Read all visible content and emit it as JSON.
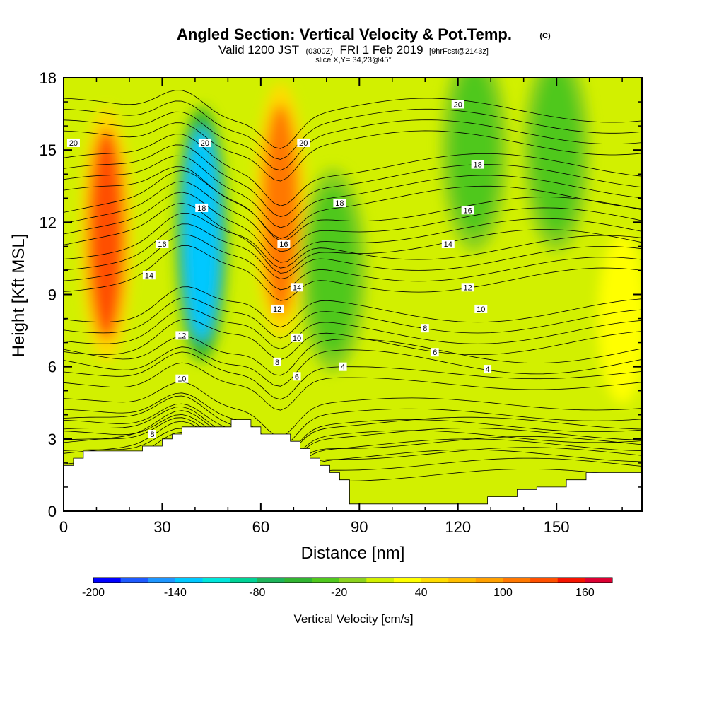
{
  "title": {
    "main": "Angled Section: Vertical Velocity & Pot.Temp.",
    "copyright": "(C)",
    "valid_prefix": "Valid 1200 JST",
    "valid_utc": "(0300Z)",
    "valid_date": "FRI 1 Feb 2019",
    "forecast": "[9hrFcst@2143z]",
    "slice": "slice X,Y= 34,23@45°"
  },
  "chart_data": {
    "type": "heatmap",
    "title": "Angled Section: Vertical Velocity & Pot.Temp.",
    "xlabel": "Distance [nm]",
    "ylabel": "Height [Kft MSL]",
    "xlim": [
      0,
      176
    ],
    "ylim": [
      0,
      18
    ],
    "x_ticks": [
      0,
      30,
      60,
      90,
      120,
      150
    ],
    "y_ticks": [
      0,
      3,
      6,
      9,
      12,
      15,
      18
    ],
    "colorbar": {
      "label": "Vertical Velocity [cm/s]",
      "min": -200,
      "max": 180,
      "step": 20,
      "tick_values": [
        -200,
        -140,
        -80,
        -20,
        40,
        100,
        160
      ],
      "tick_labels": [
        "-200",
        "-140",
        "-80",
        "-20",
        "40",
        "100",
        "160"
      ],
      "colors": [
        "#0000ff",
        "#1e5aff",
        "#1e96ff",
        "#00c8ff",
        "#00e6dc",
        "#00d296",
        "#1eb45a",
        "#32b432",
        "#50c81e",
        "#8cd21e",
        "#d2f000",
        "#ffff00",
        "#ffdc00",
        "#ffbe00",
        "#ffa000",
        "#ff7800",
        "#ff5000",
        "#f51400",
        "#dc0032",
        "#b4005a",
        "#8c0078",
        "#5a0096"
      ]
    },
    "velocity_field": [
      {
        "x": 13,
        "y": 11.5,
        "value": 130
      },
      {
        "x": 42,
        "y": 11.5,
        "value": -130
      },
      {
        "x": 66,
        "y": 12.5,
        "value": 110
      },
      {
        "x": 82,
        "y": 10,
        "value": -40
      },
      {
        "x": 95,
        "y": 2.5,
        "value": 10
      },
      {
        "x": 125,
        "y": 15,
        "value": -40
      },
      {
        "x": 150,
        "y": 15,
        "value": -40
      },
      {
        "x": 170,
        "y": 8,
        "value": 20
      }
    ],
    "potential_temperature_contours": {
      "levels": [
        4,
        6,
        8,
        10,
        12,
        14,
        16,
        18,
        20
      ],
      "labels": [
        {
          "x": 3,
          "y": 15.3,
          "text": "20"
        },
        {
          "x": 43,
          "y": 15.3,
          "text": "20"
        },
        {
          "x": 73,
          "y": 15.3,
          "text": "20"
        },
        {
          "x": 120,
          "y": 16.9,
          "text": "20"
        },
        {
          "x": 42,
          "y": 12.6,
          "text": "18"
        },
        {
          "x": 84,
          "y": 12.8,
          "text": "18"
        },
        {
          "x": 126,
          "y": 14.4,
          "text": "18"
        },
        {
          "x": 30,
          "y": 11.1,
          "text": "16"
        },
        {
          "x": 67,
          "y": 11.1,
          "text": "16"
        },
        {
          "x": 123,
          "y": 12.5,
          "text": "16"
        },
        {
          "x": 26,
          "y": 9.8,
          "text": "14"
        },
        {
          "x": 71,
          "y": 9.3,
          "text": "14"
        },
        {
          "x": 117,
          "y": 11.1,
          "text": "14"
        },
        {
          "x": 36,
          "y": 7.3,
          "text": "12"
        },
        {
          "x": 65,
          "y": 8.4,
          "text": "12"
        },
        {
          "x": 123,
          "y": 9.3,
          "text": "12"
        },
        {
          "x": 36,
          "y": 5.5,
          "text": "10"
        },
        {
          "x": 71,
          "y": 7.2,
          "text": "10"
        },
        {
          "x": 127,
          "y": 8.4,
          "text": "10"
        },
        {
          "x": 27,
          "y": 3.2,
          "text": "8"
        },
        {
          "x": 65,
          "y": 6.2,
          "text": "8"
        },
        {
          "x": 110,
          "y": 7.6,
          "text": "8"
        },
        {
          "x": 71,
          "y": 5.6,
          "text": "6"
        },
        {
          "x": 113,
          "y": 6.6,
          "text": "6"
        },
        {
          "x": 85,
          "y": 6.0,
          "text": "4"
        },
        {
          "x": 129,
          "y": 5.9,
          "text": "4"
        }
      ]
    },
    "terrain_profile": {
      "x": [
        0,
        3,
        3,
        6,
        6,
        9,
        9,
        24,
        24,
        27,
        27,
        30,
        30,
        33,
        33,
        36,
        36,
        51,
        51,
        57,
        57,
        60,
        60,
        69,
        69,
        72,
        72,
        75,
        75,
        78,
        78,
        81,
        81,
        84,
        84,
        87,
        87,
        93,
        93,
        129,
        129,
        132,
        132,
        135,
        135,
        138,
        138,
        144,
        144,
        153,
        153,
        159,
        159,
        159,
        159,
        176
      ],
      "y": [
        1.9,
        1.9,
        2.2,
        2.2,
        2.5,
        2.5,
        2.5,
        2.5,
        2.7,
        2.7,
        2.7,
        2.7,
        3.0,
        3.0,
        3.2,
        3.2,
        3.5,
        3.5,
        3.8,
        3.8,
        3.5,
        3.5,
        3.2,
        3.2,
        2.9,
        2.9,
        2.6,
        2.6,
        2.2,
        2.2,
        1.9,
        1.9,
        1.6,
        1.6,
        1.3,
        1.3,
        0.3,
        0.3,
        0.3,
        0.3,
        0.6,
        0.6,
        0.6,
        0.6,
        0.6,
        0.6,
        0.9,
        0.9,
        1.0,
        1.0,
        1.3,
        1.3,
        1.6,
        1.6,
        1.6,
        1.6
      ]
    }
  }
}
